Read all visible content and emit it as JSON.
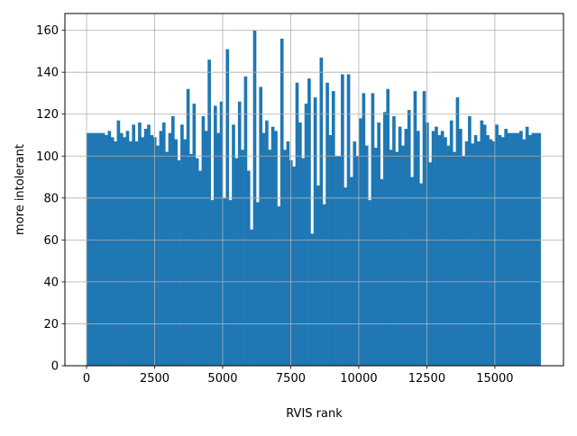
{
  "chart_data": {
    "type": "bar",
    "subtype": "histogram",
    "title": "",
    "xlabel": "RVIS rank",
    "ylabel": "more intolerant",
    "xlim": [
      -795,
      17520
    ],
    "ylim": [
      0,
      168
    ],
    "bin_range": [
      0,
      16680
    ],
    "bin_count": 150,
    "grid": true,
    "bar_color": "#1f77b4",
    "grid_color": "#b0b0b0",
    "xticks": [
      0,
      2500,
      5000,
      7500,
      10000,
      12500,
      15000
    ],
    "xtick_labels": [
      "0",
      "2500",
      "5000",
      "7500",
      "10000",
      "12500",
      "15000"
    ],
    "yticks": [
      0,
      20,
      40,
      60,
      80,
      100,
      120,
      140,
      160
    ],
    "ytick_labels": [
      "0",
      "20",
      "40",
      "60",
      "80",
      "100",
      "120",
      "140",
      "160"
    ],
    "values": [
      111,
      111,
      111,
      111,
      111,
      111,
      110,
      112,
      109,
      107,
      117,
      111,
      109,
      112,
      107,
      115,
      107,
      116,
      109,
      113,
      115,
      110,
      109,
      105,
      112,
      116,
      102,
      111,
      119,
      108,
      98,
      115,
      108,
      132,
      101,
      125,
      99,
      93,
      119,
      112,
      146,
      79,
      124,
      111,
      126,
      80,
      151,
      79,
      115,
      99,
      126,
      103,
      138,
      93,
      65,
      160,
      78,
      133,
      111,
      117,
      103,
      114,
      112,
      76,
      156,
      103,
      107,
      98,
      95,
      135,
      116,
      99,
      125,
      137,
      63,
      128,
      86,
      147,
      77,
      135,
      110,
      131,
      100,
      100,
      139,
      85,
      139,
      90,
      107,
      100,
      118,
      130,
      105,
      79,
      130,
      104,
      116,
      89,
      121,
      132,
      103,
      119,
      102,
      114,
      105,
      113,
      122,
      90,
      131,
      112,
      87,
      131,
      116,
      97,
      112,
      114,
      110,
      112,
      109,
      105,
      117,
      102,
      128,
      113,
      100,
      107,
      119,
      106,
      110,
      107,
      117,
      115,
      110,
      108,
      107,
      115,
      110,
      109,
      113,
      111,
      111,
      111,
      111,
      112,
      108,
      114,
      110,
      111,
      111,
      111
    ]
  }
}
